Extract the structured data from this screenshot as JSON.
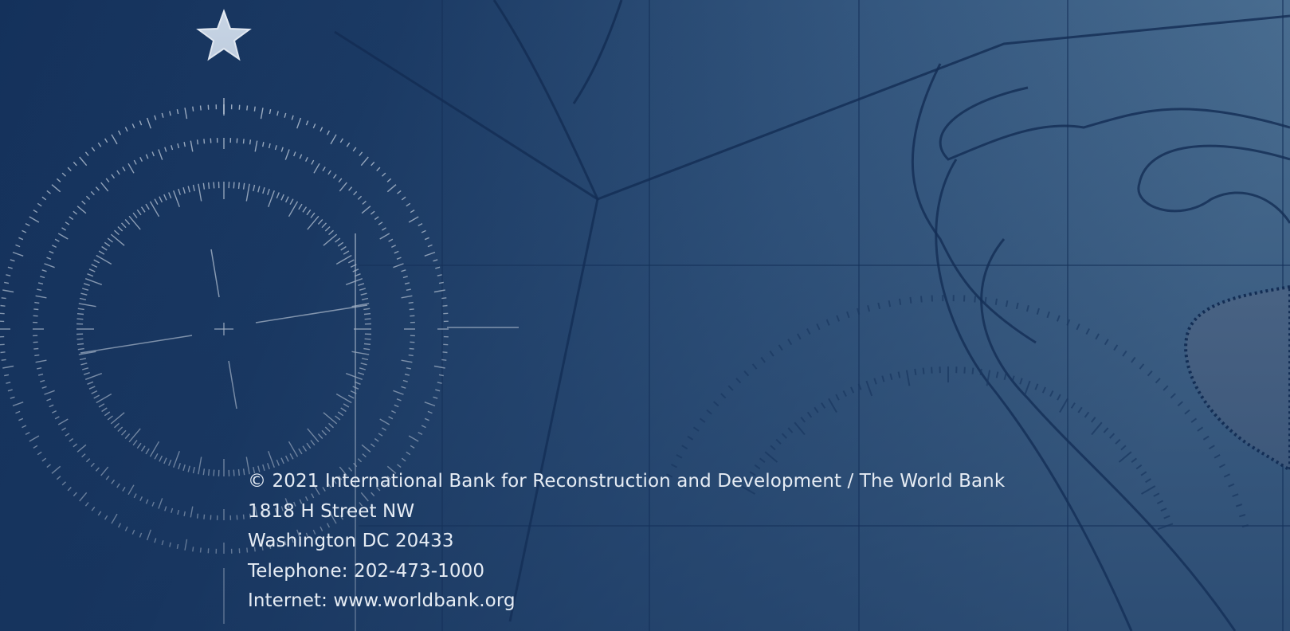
{
  "imprint": {
    "lines": [
      "© 2021 International Bank for Reconstruction and Development / The World Bank",
      "1818 H Street NW",
      "Washington DC 20433",
      "Telephone: 202-473-1000",
      "Internet: www.worldbank.org"
    ]
  }
}
